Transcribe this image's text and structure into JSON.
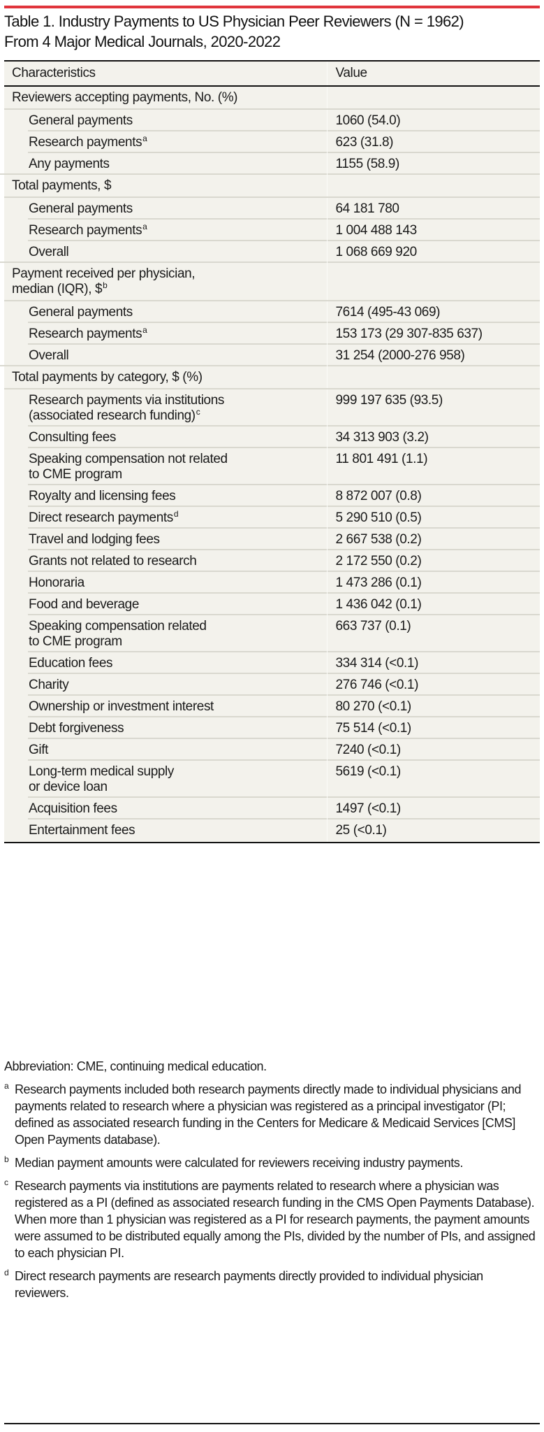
{
  "table": {
    "title_line1": "Table 1. Industry Payments to US Physician Peer Reviewers (N = 1962)",
    "title_line2": "From 4 Major Medical Journals, 2020-2022",
    "accent_color": "#e0343c",
    "columns": [
      "Characteristics",
      "Value"
    ],
    "sections": [
      {
        "label": "Reviewers accepting payments, No. (%)",
        "sup": "",
        "rows": [
          {
            "label": "General payments",
            "sup": "",
            "value": "1060 (54.0)"
          },
          {
            "label": "Research payments",
            "sup": "a",
            "value": "623 (31.8)"
          },
          {
            "label": "Any payments",
            "sup": "",
            "value": "1155 (58.9)"
          }
        ]
      },
      {
        "label": "Total payments, $",
        "sup": "",
        "rows": [
          {
            "label": "General payments",
            "sup": "",
            "value": "64 181 780"
          },
          {
            "label": "Research payments",
            "sup": "a",
            "value": "1 004 488 143"
          },
          {
            "label": "Overall",
            "sup": "",
            "value": "1 068 669 920"
          }
        ]
      },
      {
        "label_line1": "Payment received per physician,",
        "label_line2": "median (IQR), $",
        "sup": "b",
        "rows": [
          {
            "label": "General payments",
            "sup": "",
            "value": "7614 (495-43 069)"
          },
          {
            "label": "Research payments",
            "sup": "a",
            "value": "153 173 (29 307-835 637)"
          },
          {
            "label": "Overall",
            "sup": "",
            "value": "31 254 (2000-276 958)"
          }
        ]
      },
      {
        "label": "Total payments by category, $ (%)",
        "sup": "",
        "rows": [
          {
            "label_line1": "Research payments via institutions",
            "label_line2": "(associated research funding)",
            "sup": "c",
            "value": "999 197 635 (93.5)"
          },
          {
            "label": "Consulting fees",
            "sup": "",
            "value": "34 313 903 (3.2)"
          },
          {
            "label_line1": "Speaking compensation not related",
            "label_line2": "to CME program",
            "sup": "",
            "value": "11 801 491 (1.1)"
          },
          {
            "label": "Royalty and licensing fees",
            "sup": "",
            "value": "8 872 007 (0.8)"
          },
          {
            "label": "Direct research payments",
            "sup": "d",
            "value": "5 290 510 (0.5)"
          },
          {
            "label": "Travel and lodging fees",
            "sup": "",
            "value": "2 667 538 (0.2)"
          },
          {
            "label": "Grants not related to research",
            "sup": "",
            "value": "2 172 550 (0.2)"
          },
          {
            "label": "Honoraria",
            "sup": "",
            "value": "1 473 286 (0.1)"
          },
          {
            "label": "Food and beverage",
            "sup": "",
            "value": "1 436 042 (0.1)"
          },
          {
            "label_line1": "Speaking compensation related",
            "label_line2": "to CME program",
            "sup": "",
            "value": "663 737 (0.1)"
          },
          {
            "label": "Education fees",
            "sup": "",
            "value": "334 314 (<0.1)"
          },
          {
            "label": "Charity",
            "sup": "",
            "value": "276 746 (<0.1)"
          },
          {
            "label": "Ownership or investment interest",
            "sup": "",
            "value": "80 270 (<0.1)"
          },
          {
            "label": "Debt forgiveness",
            "sup": "",
            "value": "75 514 (<0.1)"
          },
          {
            "label": "Gift",
            "sup": "",
            "value": "7240 (<0.1)"
          },
          {
            "label_line1": "Long-term medical supply",
            "label_line2": "or device loan",
            "sup": "",
            "value": "5619 (<0.1)"
          },
          {
            "label": "Acquisition fees",
            "sup": "",
            "value": "1497 (<0.1)"
          },
          {
            "label": "Entertainment fees",
            "sup": "",
            "value": "25 (<0.1)"
          }
        ]
      }
    ]
  },
  "notes": {
    "abbreviation": "Abbreviation: CME, continuing medical education.",
    "footnotes": [
      {
        "mark": "a",
        "text": "Research payments included both research payments directly made to individual physicians and payments related to research where a physician was registered as a principal investigator (PI; defined as associated research funding in the Centers for Medicare & Medicaid Services [CMS] Open Payments database)."
      },
      {
        "mark": "b",
        "text": "Median payment amounts were calculated for reviewers receiving industry payments."
      },
      {
        "mark": "c",
        "text": "Research payments via institutions are payments related to research where a physician was registered as a PI (defined as associated research funding in the CMS Open Payments Database). When more than 1 physician was registered as a PI for research payments, the payment amounts were assumed to be distributed equally among the PIs, divided by the number of PIs, and assigned to each physician PI."
      },
      {
        "mark": "d",
        "text": "Direct research payments are research payments directly provided to individual physician reviewers."
      }
    ]
  }
}
